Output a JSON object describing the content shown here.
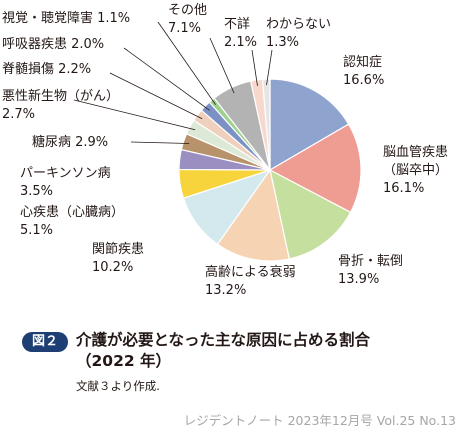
{
  "figure": {
    "badge": "図２",
    "title_line1": "介護が必要となった主な原因に占める割合",
    "title_line2": "（2022 年）",
    "note": "文献３より作成."
  },
  "footer": "レジデントノート 2023年12月号 Vol.25 No.13",
  "chart_data": {
    "type": "pie",
    "unit": "%",
    "start": "12 o'clock",
    "direction": "clockwise",
    "slices": [
      {
        "label": "認知症",
        "value": 16.6,
        "color": "#8fa3cf"
      },
      {
        "label": "脳血管疾患（脳卒中）",
        "value": 16.1,
        "color": "#ef9c92"
      },
      {
        "label": "骨折・転倒",
        "value": 13.9,
        "color": "#c5df9e"
      },
      {
        "label": "高齢による衰弱",
        "value": 13.2,
        "color": "#f5d3b3"
      },
      {
        "label": "関節疾患",
        "value": 10.2,
        "color": "#d3e9ee"
      },
      {
        "label": "心疾患（心臓病）",
        "value": 5.1,
        "color": "#f7d43b"
      },
      {
        "label": "パーキンソン病",
        "value": 3.5,
        "color": "#9b8fc2"
      },
      {
        "label": "糖尿病",
        "value": 2.9,
        "color": "#b7926a"
      },
      {
        "label": "悪性新生物（がん）",
        "value": 2.7,
        "color": "#dce9d6"
      },
      {
        "label": "脊髄損傷",
        "value": 2.2,
        "color": "#efd0bc"
      },
      {
        "label": "呼吸器疾患",
        "value": 2.0,
        "color": "#7c92c6"
      },
      {
        "label": "視覚・聴覚障害",
        "value": 1.1,
        "color": "#9ed08e"
      },
      {
        "label": "その他",
        "value": 7.1,
        "color": "#b3b3b3"
      },
      {
        "label": "不詳",
        "value": 2.1,
        "color": "#f8d7cd"
      },
      {
        "label": "わからない",
        "value": 1.3,
        "color": "#e5e5e5"
      }
    ],
    "labels": [
      {
        "line1": "認知症",
        "line2": "16.6%"
      },
      {
        "line1": "脳血管疾患",
        "line2": "（脳卒中）",
        "line3": "16.1%"
      },
      {
        "line1": "骨折・転倒",
        "line2": "13.9%"
      },
      {
        "line1": "高齢による衰弱",
        "line2": "13.2%"
      },
      {
        "line1": "関節疾患",
        "line2": "10.2%"
      },
      {
        "line1": "心疾患（心臓病）",
        "line2": "5.1%"
      },
      {
        "line1": "パーキンソン病",
        "line2": "3.5%"
      },
      {
        "line1": "糖尿病 2.9%"
      },
      {
        "line1": "悪性新生物（がん）",
        "line2": "2.7%"
      },
      {
        "line1": "脊髄損傷 2.2%"
      },
      {
        "line1": "呼吸器疾患 2.0%"
      },
      {
        "line1": "視覚・聴覚障害 1.1%"
      },
      {
        "line1": "その他",
        "line2": "7.1%"
      },
      {
        "line1": "不詳",
        "line2": "2.1%"
      },
      {
        "line1": "わからない",
        "line2": "1.3%"
      }
    ]
  }
}
